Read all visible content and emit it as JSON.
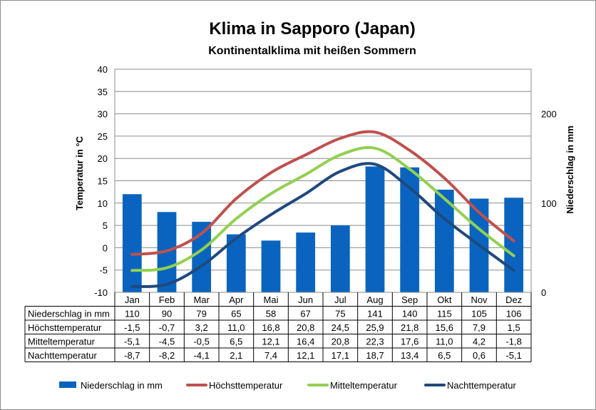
{
  "chart_data": {
    "type": "bar",
    "title": "Klima in Sapporo (Japan)",
    "subtitle": "Kontinentalklima mit heißen Sommern",
    "categories": [
      "Jan",
      "Feb",
      "Mar",
      "Apr",
      "Mai",
      "Jun",
      "Jul",
      "Aug",
      "Sep",
      "Okt",
      "Nov",
      "Dez"
    ],
    "ylabel": "Temperatur in °C",
    "y2label": "Niederschlag in mm",
    "ylim": [
      -10,
      40
    ],
    "y2lim": [
      0,
      250
    ],
    "yticks": [
      "-10",
      "-5",
      "0",
      "5",
      "10",
      "15",
      "20",
      "25",
      "30",
      "35",
      "40"
    ],
    "y2ticks": [
      "0",
      "100",
      "200"
    ],
    "grid": true,
    "legend_position": "bottom",
    "series": [
      {
        "name": "Niederschlag in mm",
        "type": "bar",
        "axis": "right",
        "color": "#0a64bf",
        "values": [
          110,
          90,
          79,
          65,
          58,
          67,
          75,
          141,
          140,
          115,
          105,
          106
        ],
        "labels": [
          "110",
          "90",
          "79",
          "65",
          "58",
          "67",
          "75",
          "141",
          "140",
          "115",
          "105",
          "106"
        ]
      },
      {
        "name": "Höchsttemperatur",
        "type": "line",
        "axis": "left",
        "color": "#c0504d",
        "values": [
          -1.5,
          -0.7,
          3.2,
          11.0,
          16.8,
          20.8,
          24.5,
          25.9,
          21.8,
          15.6,
          7.9,
          1.5
        ],
        "labels": [
          "-1,5",
          "-0,7",
          "3,2",
          "11,0",
          "16,8",
          "20,8",
          "24,5",
          "25,9",
          "21,8",
          "15,6",
          "7,9",
          "1,5"
        ]
      },
      {
        "name": "Mitteltemperatur",
        "type": "line",
        "axis": "left",
        "color": "#92d050",
        "values": [
          -5.1,
          -4.5,
          -0.5,
          6.5,
          12.1,
          16.4,
          20.8,
          22.3,
          17.6,
          11.0,
          4.2,
          -1.8
        ],
        "labels": [
          "-5,1",
          "-4,5",
          "-0,5",
          "6,5",
          "12,1",
          "16,4",
          "20,8",
          "22,3",
          "17,6",
          "11,0",
          "4,2",
          "-1,8"
        ]
      },
      {
        "name": "Nachttemperatur",
        "type": "line",
        "axis": "left",
        "color": "#1f497d",
        "values": [
          -8.7,
          -8.2,
          -4.1,
          2.1,
          7.4,
          12.1,
          17.1,
          18.7,
          13.4,
          6.5,
          0.6,
          -5.1
        ],
        "labels": [
          "-8,7",
          "-8,2",
          "-4,1",
          "2,1",
          "7,4",
          "12,1",
          "17,1",
          "18,7",
          "13,4",
          "6,5",
          "0,6",
          "-5,1"
        ]
      }
    ]
  }
}
